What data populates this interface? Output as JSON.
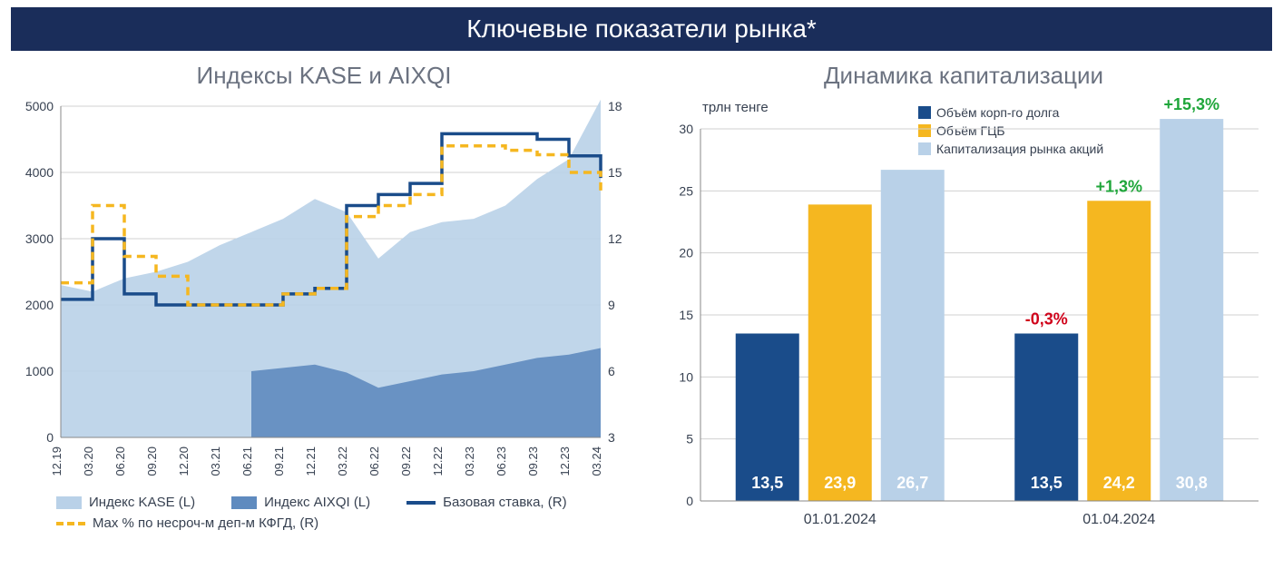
{
  "header": {
    "title": "Ключевые показатели рынка*"
  },
  "left_chart": {
    "type": "area+line-dual-axis",
    "title": "Индексы KASE и AIXQI",
    "x_labels": [
      "12.19",
      "03.20",
      "06.20",
      "09.20",
      "12.20",
      "03.21",
      "06.21",
      "09.21",
      "12.21",
      "03.22",
      "06.22",
      "09.22",
      "12.22",
      "03.23",
      "06.23",
      "09.23",
      "12.23",
      "03.24"
    ],
    "y_left": {
      "min": 0,
      "max": 5000,
      "ticks": [
        0,
        1000,
        2000,
        3000,
        4000,
        5000
      ]
    },
    "y_right": {
      "min": 3,
      "max": 18,
      "ticks": [
        3,
        6,
        9,
        12,
        15,
        18
      ]
    },
    "colors": {
      "kase_area": "#b9d1e8",
      "aixqi_area": "#5f8bbf",
      "base_rate_line": "#1a4c8a",
      "max_rate_dash": "#f5b720",
      "grid": "#d0d0d0",
      "text": "#374151"
    },
    "series": {
      "kase": [
        2300,
        2200,
        2400,
        2500,
        2650,
        2900,
        3100,
        3300,
        3600,
        3400,
        2700,
        3100,
        3250,
        3300,
        3500,
        3900,
        4200,
        5100
      ],
      "aixqi_start_index": 6,
      "aixqi": [
        1000,
        1050,
        1100,
        980,
        750,
        850,
        950,
        1000,
        1100,
        1200,
        1250,
        1350
      ],
      "base_rate": [
        9.25,
        12,
        9.5,
        9,
        9,
        9,
        9,
        9.5,
        9.75,
        13.5,
        14,
        14.5,
        16.75,
        16.75,
        16.75,
        16.5,
        15.75,
        14.75
      ],
      "max_rate": [
        10,
        13.5,
        11.2,
        10.3,
        9,
        9,
        9,
        9.5,
        9.75,
        13,
        13.5,
        14,
        16.2,
        16.2,
        16,
        15.8,
        15,
        14
      ]
    },
    "legend": [
      {
        "label": "Индекс KASE (L)",
        "swatch": "box",
        "color": "#b9d1e8"
      },
      {
        "label": "Индекс AIXQI (L)",
        "swatch": "box",
        "color": "#5f8bbf"
      },
      {
        "label": "Базовая ставка, (R)",
        "swatch": "line",
        "color": "#1a4c8a"
      },
      {
        "label": "Max % по несроч-м деп-м КФГД, (R)",
        "swatch": "dash",
        "color": "#f5b720"
      }
    ]
  },
  "right_chart": {
    "type": "grouped-bar",
    "title": "Динамика капитализации",
    "unit_label": "трлн тенге",
    "y": {
      "min": 0,
      "max": 30,
      "ticks": [
        0,
        5,
        10,
        15,
        20,
        25,
        30
      ]
    },
    "colors": {
      "corp_debt": "#1a4c8a",
      "gov_sec": "#f5b720",
      "market_cap": "#b9d1e8",
      "grid": "#d0d0d0",
      "text": "#374151",
      "pos_pct": "#1fa63a",
      "neg_pct": "#d0021b"
    },
    "legend": [
      {
        "label": "Объём корп-го долга",
        "color": "#1a4c8a"
      },
      {
        "label": "Объём ГЦБ",
        "color": "#f5b720"
      },
      {
        "label": "Капитализация рынка акций",
        "color": "#b9d1e8"
      }
    ],
    "groups": [
      {
        "label": "01.01.2024",
        "bars": [
          {
            "value": 13.5,
            "label": "13,5",
            "color": "#1a4c8a",
            "text_color": "#ffffff"
          },
          {
            "value": 23.9,
            "label": "23,9",
            "color": "#f5b720",
            "text_color": "#ffffff"
          },
          {
            "value": 26.7,
            "label": "26,7",
            "color": "#b9d1e8",
            "text_color": "#5a6b7d"
          }
        ]
      },
      {
        "label": "01.04.2024",
        "bars": [
          {
            "value": 13.5,
            "label": "13,5",
            "color": "#1a4c8a",
            "text_color": "#ffffff",
            "pct": "-0,3%",
            "pct_color": "#d0021b"
          },
          {
            "value": 24.2,
            "label": "24,2",
            "color": "#f5b720",
            "text_color": "#ffffff",
            "pct": "+1,3%",
            "pct_color": "#1fa63a"
          },
          {
            "value": 30.8,
            "label": "30,8",
            "color": "#b9d1e8",
            "text_color": "#5a6b7d",
            "pct": "+15,3%",
            "pct_color": "#1fa63a"
          }
        ]
      }
    ]
  }
}
